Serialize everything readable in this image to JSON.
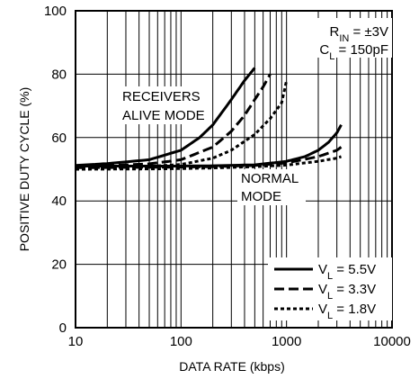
{
  "chart_data": {
    "type": "line",
    "xlabel": "DATA RATE (kbps)",
    "ylabel": "POSITIVE DUTY CYCLE (%)",
    "xscale": "log",
    "xlim": [
      10,
      10000
    ],
    "ylim": [
      0,
      100
    ],
    "x_ticks": [
      "10",
      "100",
      "1000",
      "10000"
    ],
    "y_ticks": [
      "0",
      "20",
      "40",
      "60",
      "80",
      "100"
    ],
    "grid": "vertical log gridlines at each decade subdivision; horizontal gridlines every 20%",
    "legend_position": "bottom-right",
    "conditions": {
      "rin": "R",
      "rin_sub": "IN",
      "rin_value": " = ±3V",
      "cl": "C",
      "cl_sub": "L",
      "cl_value": " = 150pF"
    },
    "annotations": {
      "receivers_line1": "RECEIVERS",
      "receivers_line2": "ALIVE MODE",
      "normal_line1": "NORMAL",
      "normal_line2": "MODE"
    },
    "legend": [
      {
        "prefix": "V",
        "sub": "L",
        "value": " = 5.5V",
        "style": "solid"
      },
      {
        "prefix": "V",
        "sub": "L",
        "value": " = 3.3V",
        "style": "dashed"
      },
      {
        "prefix": "V",
        "sub": "L",
        "value": " = 1.8V",
        "style": "dotted"
      }
    ],
    "series": [
      {
        "group": "receivers-alive",
        "style": "solid",
        "x": [
          10,
          20,
          50,
          100,
          150,
          200,
          300,
          400,
          500
        ],
        "y": [
          51.2,
          51.8,
          53,
          56,
          60,
          64,
          72,
          78,
          82
        ]
      },
      {
        "group": "receivers-alive",
        "style": "dashed",
        "x": [
          10,
          20,
          50,
          100,
          200,
          300,
          400,
          500,
          600,
          700
        ],
        "y": [
          50.8,
          51.1,
          51.7,
          53,
          57,
          62,
          67,
          72,
          76,
          80
        ]
      },
      {
        "group": "receivers-alive",
        "style": "dotted",
        "x": [
          10,
          20,
          50,
          100,
          200,
          300,
          500,
          700,
          900,
          1000
        ],
        "y": [
          50.3,
          50.5,
          50.9,
          51.5,
          53.5,
          56,
          61,
          66,
          71,
          78
        ]
      },
      {
        "group": "normal",
        "style": "solid",
        "x": [
          10,
          50,
          100,
          200,
          500,
          1000,
          1500,
          2000,
          2500,
          3000,
          3300
        ],
        "y": [
          51,
          51,
          51,
          51.1,
          51.4,
          52.5,
          54,
          56,
          58.5,
          61.5,
          64
        ]
      },
      {
        "group": "normal",
        "style": "dashed",
        "x": [
          10,
          50,
          100,
          200,
          500,
          1000,
          2000,
          3000,
          3300
        ],
        "y": [
          50.5,
          50.6,
          50.7,
          50.8,
          51.2,
          52,
          54,
          56,
          57
        ]
      },
      {
        "group": "normal",
        "style": "dotted",
        "x": [
          10,
          50,
          100,
          200,
          500,
          1000,
          2000,
          3000,
          3300
        ],
        "y": [
          50,
          50.1,
          50.2,
          50.4,
          50.8,
          51.3,
          52.5,
          53.5,
          54
        ]
      }
    ]
  }
}
